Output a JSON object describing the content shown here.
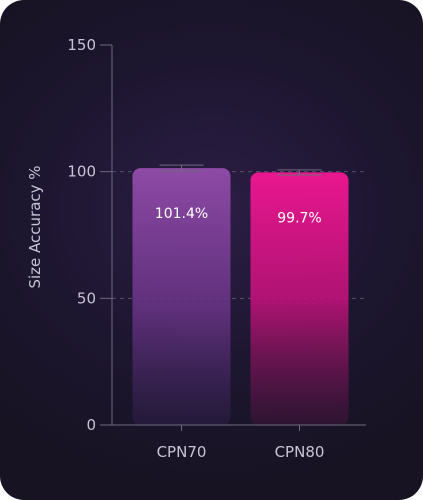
{
  "chart_data": {
    "type": "bar",
    "categories": [
      "CPN70",
      "CPN80"
    ],
    "values": [
      101.4,
      99.7
    ],
    "error": [
      1.2,
      1.0
    ],
    "data_labels": [
      "101.4%",
      "99.7%"
    ],
    "ylabel": "Size Accuracy %",
    "xlabel": "",
    "ylim": [
      0,
      150
    ],
    "yticks": [
      0,
      50,
      100,
      150
    ],
    "ytick_labels": [
      "0",
      "50",
      "100",
      "150"
    ],
    "gridlines": [
      50,
      100
    ],
    "grid": "dashed-horizontal",
    "colors": {
      "CPN70": "#8e4aa6",
      "CPN80": "#e8158c",
      "axis": "#6f6a80",
      "grid": "#55506a",
      "background": "#1d1630"
    }
  }
}
